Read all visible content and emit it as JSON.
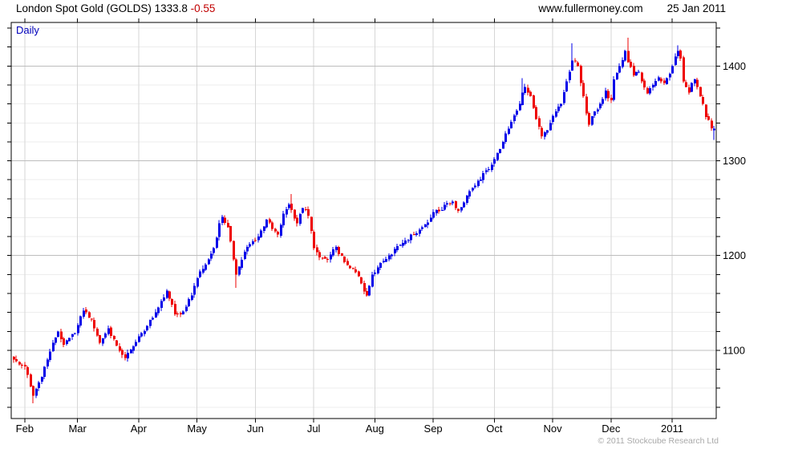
{
  "header": {
    "title": "London Spot Gold (GOLDS)",
    "price": "1333.8",
    "change": "-0.55",
    "site": "www.fullermoney.com",
    "date": "25 Jan 2011"
  },
  "chart_label": "Daily",
  "footer": {
    "copyright": "© 2011 Stockcube Research Ltd"
  },
  "colors": {
    "up": "#0000e8",
    "down": "#ee0000",
    "change_text": "#c00000",
    "timeframe_text": "#0000bb",
    "grid_minor": "#ededed",
    "grid_major": "#bdbdbd",
    "grid_month": "#d6d6d6",
    "frame": "#000000",
    "label_text": "#000000",
    "copyright_text": "#a9a9a9"
  },
  "chart_data": {
    "type": "candlestick",
    "title": "London Spot Gold (GOLDS)",
    "timeframe": "Daily",
    "last_price": 1333.8,
    "change": -0.55,
    "num_days": 253,
    "y_axis": {
      "min": 1028,
      "max": 1446,
      "minor_step": 20,
      "labeled_ticks": [
        1100,
        1200,
        1300,
        1400
      ]
    },
    "x_axis": {
      "labels": [
        "Feb",
        "Mar",
        "Apr",
        "May",
        "Jun",
        "Jul",
        "Aug",
        "Sep",
        "Oct",
        "Nov",
        "Dec",
        "2011"
      ],
      "boundary_day_index": [
        4,
        23,
        45,
        66,
        87,
        108,
        130,
        151,
        173,
        194,
        215,
        237
      ]
    },
    "anchors": [
      [
        0,
        1090
      ],
      [
        2,
        1085
      ],
      [
        4,
        1083
      ],
      [
        6,
        1062
      ],
      [
        7,
        1052
      ],
      [
        9,
        1066
      ],
      [
        12,
        1090
      ],
      [
        14,
        1108
      ],
      [
        16,
        1120
      ],
      [
        18,
        1106
      ],
      [
        20,
        1113
      ],
      [
        22,
        1118
      ],
      [
        25,
        1142
      ],
      [
        28,
        1133
      ],
      [
        31,
        1108
      ],
      [
        34,
        1123
      ],
      [
        37,
        1105
      ],
      [
        40,
        1092
      ],
      [
        43,
        1104
      ],
      [
        46,
        1118
      ],
      [
        50,
        1134
      ],
      [
        53,
        1152
      ],
      [
        55,
        1163
      ],
      [
        57,
        1148
      ],
      [
        58,
        1138
      ],
      [
        60,
        1138
      ],
      [
        62,
        1146
      ],
      [
        64,
        1158
      ],
      [
        66,
        1176
      ],
      [
        68,
        1186
      ],
      [
        70,
        1196
      ],
      [
        72,
        1208
      ],
      [
        74,
        1234
      ],
      [
        75,
        1241
      ],
      [
        77,
        1230
      ],
      [
        79,
        1196
      ],
      [
        80,
        1180
      ],
      [
        83,
        1204
      ],
      [
        85,
        1212
      ],
      [
        88,
        1220
      ],
      [
        91,
        1238
      ],
      [
        93,
        1228
      ],
      [
        95,
        1222
      ],
      [
        97,
        1244
      ],
      [
        99,
        1254
      ],
      [
        100,
        1248
      ],
      [
        102,
        1234
      ],
      [
        104,
        1250
      ],
      [
        106,
        1242
      ],
      [
        108,
        1208
      ],
      [
        110,
        1198
      ],
      [
        113,
        1196
      ],
      [
        116,
        1209
      ],
      [
        119,
        1193
      ],
      [
        122,
        1186
      ],
      [
        124,
        1178
      ],
      [
        126,
        1162
      ],
      [
        127,
        1158
      ],
      [
        129,
        1180
      ],
      [
        132,
        1192
      ],
      [
        135,
        1200
      ],
      [
        138,
        1210
      ],
      [
        141,
        1216
      ],
      [
        144,
        1222
      ],
      [
        147,
        1230
      ],
      [
        150,
        1240
      ],
      [
        152,
        1248
      ],
      [
        154,
        1248
      ],
      [
        156,
        1255
      ],
      [
        158,
        1257
      ],
      [
        160,
        1247
      ],
      [
        162,
        1256
      ],
      [
        164,
        1268
      ],
      [
        166,
        1274
      ],
      [
        168,
        1280
      ],
      [
        170,
        1290
      ],
      [
        172,
        1296
      ],
      [
        174,
        1308
      ],
      [
        176,
        1320
      ],
      [
        178,
        1334
      ],
      [
        180,
        1348
      ],
      [
        182,
        1360
      ],
      [
        183,
        1372
      ],
      [
        184,
        1378
      ],
      [
        186,
        1368
      ],
      [
        188,
        1344
      ],
      [
        190,
        1326
      ],
      [
        192,
        1332
      ],
      [
        193,
        1340
      ],
      [
        195,
        1352
      ],
      [
        197,
        1360
      ],
      [
        199,
        1384
      ],
      [
        200,
        1394
      ],
      [
        201,
        1406
      ],
      [
        203,
        1400
      ],
      [
        205,
        1368
      ],
      [
        206,
        1350
      ],
      [
        207,
        1338
      ],
      [
        209,
        1352
      ],
      [
        211,
        1360
      ],
      [
        213,
        1374
      ],
      [
        214,
        1366
      ],
      [
        215,
        1364
      ],
      [
        216,
        1386
      ],
      [
        218,
        1400
      ],
      [
        220,
        1416
      ],
      [
        221,
        1404
      ],
      [
        223,
        1390
      ],
      [
        225,
        1394
      ],
      [
        226,
        1384
      ],
      [
        228,
        1371
      ],
      [
        230,
        1380
      ],
      [
        232,
        1388
      ],
      [
        234,
        1382
      ],
      [
        236,
        1392
      ],
      [
        238,
        1410
      ],
      [
        239,
        1416
      ],
      [
        240,
        1408
      ],
      [
        241,
        1384
      ],
      [
        242,
        1378
      ],
      [
        243,
        1372
      ],
      [
        244,
        1382
      ],
      [
        245,
        1386
      ],
      [
        246,
        1378
      ],
      [
        247,
        1368
      ],
      [
        248,
        1360
      ],
      [
        249,
        1346
      ],
      [
        250,
        1343
      ],
      [
        251,
        1334.4
      ],
      [
        252,
        1333.8
      ]
    ],
    "wick_overrides": [
      [
        7,
        "low",
        1044
      ],
      [
        80,
        "low",
        1166
      ],
      [
        100,
        "high",
        1265
      ],
      [
        183,
        "high",
        1387
      ],
      [
        201,
        "high",
        1424
      ],
      [
        221,
        "high",
        1430
      ],
      [
        239,
        "high",
        1422
      ],
      [
        252,
        "low",
        1322
      ]
    ],
    "open_overrides": [
      [
        252,
        1332
      ]
    ]
  }
}
